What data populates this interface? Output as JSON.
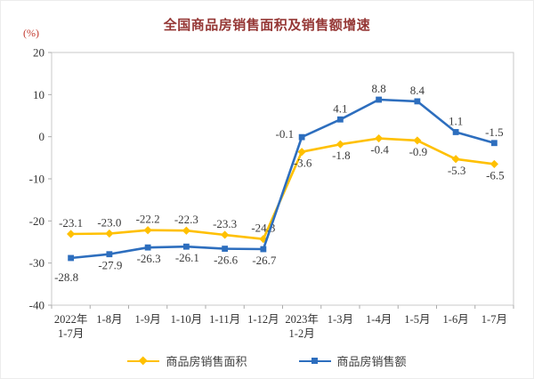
{
  "chart_data": {
    "type": "line",
    "title": "全国商品房销售面积及销售额增速",
    "unit": "(%)",
    "categories": [
      "2022年\n1-7月",
      "1-8月",
      "1-9月",
      "1-10月",
      "1-11月",
      "1-12月",
      "2023年\n1-2月",
      "1-3月",
      "1-4月",
      "1-5月",
      "1-6月",
      "1-7月"
    ],
    "y_axis": {
      "min": -40,
      "max": 20,
      "step": 10,
      "ticks": [
        20,
        10,
        0,
        -10,
        -20,
        -30,
        -40
      ]
    },
    "grid": false,
    "legend_position": "bottom",
    "series": [
      {
        "name": "商品房销售面积",
        "color": "#FFC000",
        "marker": "diamond",
        "values": [
          -23.1,
          -23.0,
          -22.2,
          -22.3,
          -23.3,
          -24.3,
          -3.6,
          -1.8,
          -0.4,
          -0.9,
          -5.3,
          -6.5
        ],
        "labels": [
          "-23.1",
          "-23.0",
          "-22.2",
          "-22.3",
          "-23.3",
          "-24.3",
          "-3.6",
          "-1.8",
          "-0.4",
          "-0.9",
          "-5.3",
          "-6.5"
        ],
        "label_positions": [
          "above",
          "above",
          "above",
          "above",
          "above",
          "above",
          "below",
          "below",
          "below",
          "below",
          "below",
          "below"
        ]
      },
      {
        "name": "商品房销售额",
        "color": "#2D6EBE",
        "marker": "square",
        "values": [
          -28.8,
          -27.9,
          -26.3,
          -26.1,
          -26.6,
          -26.7,
          -0.1,
          4.1,
          8.8,
          8.4,
          1.1,
          -1.5
        ],
        "labels": [
          "-28.8",
          "-27.9",
          "-26.3",
          "-26.1",
          "-26.6",
          "-26.7",
          "-0.1",
          "4.1",
          "8.8",
          "8.4",
          "1.1",
          "-1.5"
        ],
        "label_positions": [
          "below-left",
          "below",
          "below",
          "below",
          "below",
          "below",
          "left",
          "above",
          "above",
          "above",
          "above",
          "above"
        ]
      }
    ]
  },
  "colors": {
    "title": "#953735",
    "unit": "#C3392F",
    "axis_border": "#C9C9C9",
    "tick": "#ABABAB",
    "axis_text": "#333333",
    "data_label": "#3A3A3A",
    "legend_text": "#404040"
  }
}
